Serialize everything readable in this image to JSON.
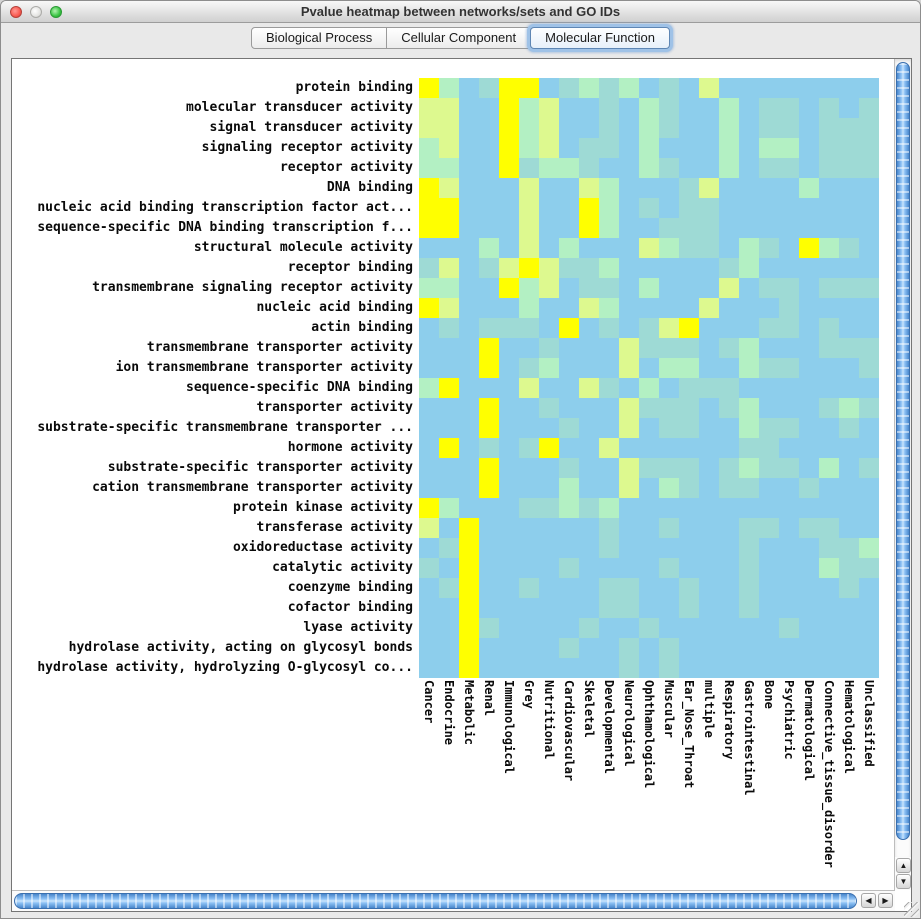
{
  "window": {
    "title": "Pvalue heatmap between networks/sets and GO IDs"
  },
  "tabs": [
    {
      "label": "Biological Process",
      "selected": false
    },
    {
      "label": "Cellular Component",
      "selected": false
    },
    {
      "label": "Molecular Function",
      "selected": true
    }
  ],
  "icons": {
    "arrow_up": "▲",
    "arrow_down": "▼",
    "arrow_left": "◀",
    "arrow_right": "▶"
  },
  "chart_data": {
    "type": "heatmap",
    "title": "Pvalue heatmap between networks/sets and GO IDs",
    "rows": [
      "protein binding",
      "molecular transducer activity",
      "signal transducer activity",
      "signaling receptor activity",
      "receptor activity",
      "DNA binding",
      "nucleic acid binding transcription factor act...",
      "sequence-specific DNA binding transcription f...",
      "structural molecule activity",
      "receptor binding",
      "transmembrane signaling receptor activity",
      "nucleic acid binding",
      "actin binding",
      "transmembrane transporter activity",
      "ion transmembrane transporter activity",
      "sequence-specific DNA binding",
      "transporter activity",
      "substrate-specific transmembrane transporter ...",
      "hormone activity",
      "substrate-specific transporter activity",
      "cation transmembrane transporter activity",
      "protein kinase activity",
      "transferase activity",
      "oxidoreductase activity",
      "catalytic activity",
      "coenzyme binding",
      "cofactor binding",
      "lyase activity",
      "hydrolase activity, acting on glycosyl bonds",
      "hydrolase activity, hydrolyzing O-glycosyl co..."
    ],
    "columns": [
      "Cancer",
      "Endocrine",
      "Metabolic",
      "Renal",
      "Immunological",
      "Grey",
      "Nutritional",
      "Cardiovascular",
      "Skeletal",
      "Developmental",
      "Neurological",
      "Ophthamological",
      "Muscular",
      "Ear_Nose_Throat",
      "multiple",
      "Respiratory",
      "Gastrointestinal",
      "Bone",
      "Psychiatric",
      "Dermatological",
      "Connective_tissue_disorder",
      "Hematological",
      "Unclassified"
    ],
    "palette": {
      "B": "#8DCEEC",
      "C": "#9EDAD5",
      "M": "#B3F0C3",
      "G": "#DDF98F",
      "Y": "#FFFF00"
    },
    "palette_legend": {
      "B": "base-blue",
      "C": "teal",
      "M": "mint-green",
      "G": "pale-yellow-green",
      "Y": "bright-yellow"
    },
    "grid": [
      "YMBCYYBCMCMBCBGBBBBBBBB",
      "GGBBYMGBBCBMCBBMBCCBCBC",
      "GGBBYMGBBCBMCBBMBCCBCCC",
      "MGBBYMGBCCBMBBBMBMMBCCC",
      "MMBBYCMMCBBMCBBMBCCBCCC",
      "YGBBBGBBGMBBBCGBBBBMBBB",
      "YYBBBGBBYMBCBCCBBBBBBBB",
      "YYBBBGBBYMBBCCCBBBBBBBB",
      "BBBMBGBMBBBGMCCBMCBYMCB",
      "CGBCGYGCCMBBBBBCMBBBBBB",
      "MMBBYMGBCCBMBBBGBCCBCCC",
      "YGBBBMBBGMBBBBGBBBCBBBB",
      "BCBCCCBYBCBCGYBBBCCBCBB",
      "BBBYBBCBBBGCCCBCMBBBCCC",
      "BBBYBCMBBBGBMMBBMCCBBBC",
      "MYBBBGBBGCBMBCCCBBBBBBB",
      "BBBYBBCBBBGCCCBCMBBBCMC",
      "BBBYBBBCBBGBCCBBMCCBBCB",
      "BYBCBCYBBGBBBBBBCCBBBBB",
      "BBBYBBBCBBGCCCBCMCCBMBC",
      "BBBYBBBMBBGBMCBCCBBCBBB",
      "YMBBBCCMCMBBBBBBBBBBBBB",
      "GBYBBBBBBCBBCBBBCCBCCBB",
      "BCYBBBBBBCBBBBBBCBBBCCM",
      "CBYBBBBCBBBBCBBBCBBBMCC",
      "BCYBBCBBBCCBBCBBCBBBBCB",
      "BBYBBBBBBCCBBCBBCBBBBBB",
      "BBYCBBBBCBBCBBBBBBCBBBB",
      "BBYBBBBCBBCBCBBBBBBBBBB",
      "BBYBBBBBBBCBCBBBBBBBBBB"
    ]
  }
}
